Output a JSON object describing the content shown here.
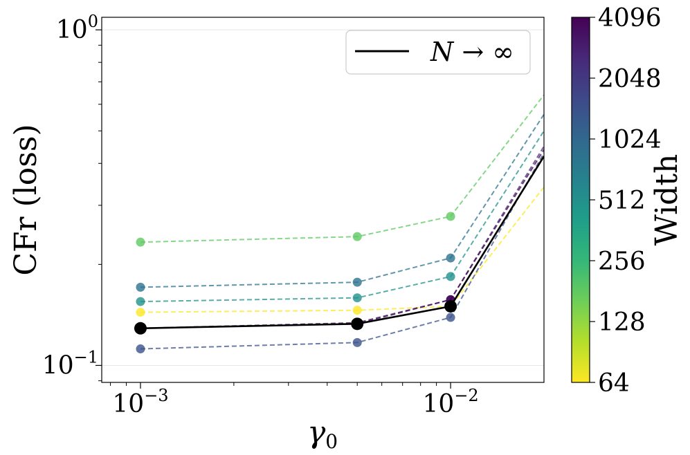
{
  "chart_data": {
    "type": "line",
    "xlabel_base": "γ",
    "xlabel_sub": "0",
    "ylabel": "CFr (loss)",
    "xscale": "log",
    "yscale": "log",
    "xlim": [
      0.00075,
      0.02
    ],
    "ylim": [
      0.089,
      1.09
    ],
    "x_ticks": [
      {
        "value": 0.001,
        "base": "10",
        "exp": "−3"
      },
      {
        "value": 0.01,
        "base": "10",
        "exp": "−2"
      }
    ],
    "y_ticks": [
      {
        "value": 0.1,
        "base": "10",
        "exp": "−1"
      },
      {
        "value": 1.0,
        "base": "10",
        "exp": "0"
      }
    ],
    "x": [
      0.001,
      0.005,
      0.01,
      0.02
    ],
    "series": [
      {
        "name": "64",
        "color": "#fde725",
        "values": [
          0.144,
          0.146,
          0.15,
          0.34
        ]
      },
      {
        "name": "128",
        "color": "#5ec962",
        "values": [
          0.233,
          0.242,
          0.278,
          0.64
        ]
      },
      {
        "name": "256",
        "color": "#21918c",
        "values": [
          0.155,
          0.159,
          0.184,
          0.5
        ]
      },
      {
        "name": "512",
        "color": "#2c728e",
        "values": [
          0.171,
          0.177,
          0.209,
          0.56
        ]
      },
      {
        "name": "1024",
        "color": "#3b528b",
        "values": [
          0.112,
          0.117,
          0.139,
          0.43
        ]
      },
      {
        "name": "2048",
        "color": "#472d7b",
        "values": [
          0.129,
          0.133,
          0.157,
          0.45
        ]
      },
      {
        "name": "4096",
        "color": "#440154",
        "values": [
          0.129,
          0.134,
          0.157,
          0.44
        ]
      }
    ],
    "limit_series": {
      "name": "N → ∞",
      "color": "#000000",
      "values": [
        0.129,
        0.133,
        0.15,
        0.42
      ]
    },
    "legend": {
      "label_italic": "N",
      "label_rest": " → ∞",
      "position": "top-right"
    },
    "colorbar": {
      "label": "Width",
      "ticks": [
        "64",
        "128",
        "256",
        "512",
        "1024",
        "2048",
        "4096"
      ],
      "colormap": [
        "#440154",
        "#482878",
        "#3e4989",
        "#31688e",
        "#26828e",
        "#1f9e89",
        "#35b779",
        "#6ece58",
        "#b5de2b",
        "#fde725"
      ]
    }
  }
}
